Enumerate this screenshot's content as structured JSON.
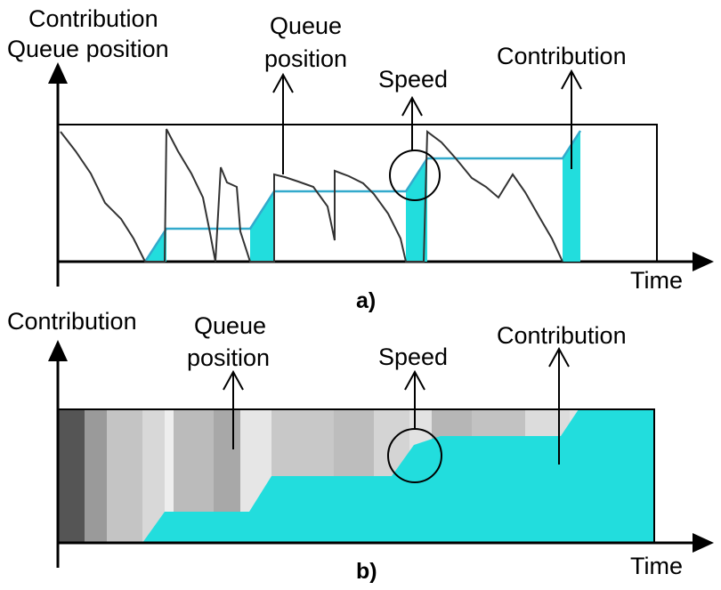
{
  "panel_a": {
    "y_axis_line1": "Contribution",
    "y_axis_line2": "Queue position",
    "x_axis": "Time",
    "caption": "a)",
    "ann_queue_line1": "Queue",
    "ann_queue_line2": "position",
    "ann_speed": "Speed",
    "ann_contribution": "Contribution"
  },
  "panel_b": {
    "y_axis": "Contribution",
    "x_axis": "Time",
    "caption": "b)",
    "ann_queue_line1": "Queue",
    "ann_queue_line2": "position",
    "ann_speed": "Speed",
    "ann_contribution": "Contribution"
  },
  "colors": {
    "contribution": "#22dddd",
    "queue_line": "#333333",
    "axis": "#000000"
  }
}
